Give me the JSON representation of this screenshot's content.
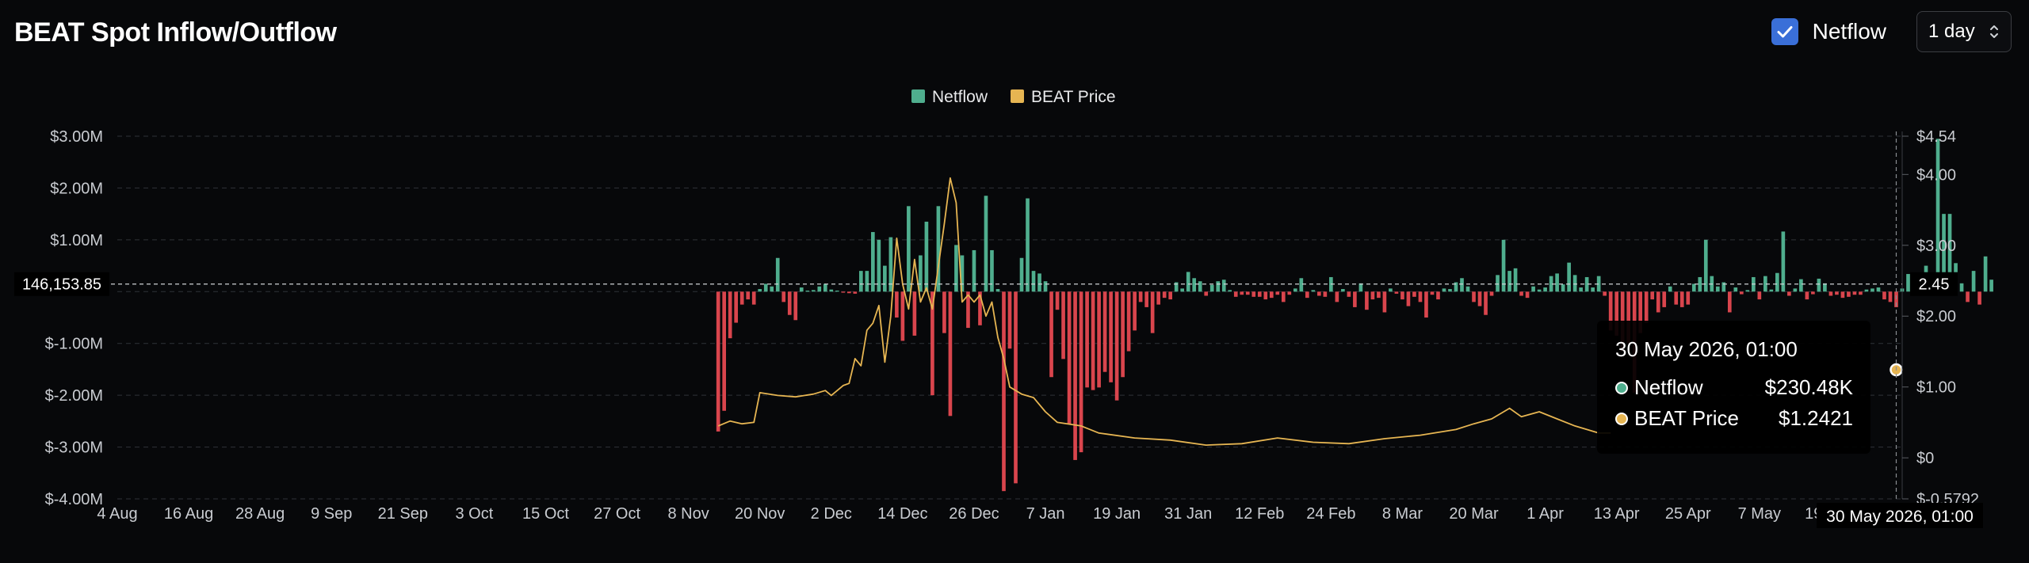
{
  "header": {
    "title": "BEAT Spot Inflow/Outflow",
    "netflow_toggle_label": "Netflow",
    "netflow_checked": true,
    "interval": "1 day"
  },
  "colors": {
    "background": "#07080a",
    "netflow_positive": "#4fae8e",
    "netflow_negative": "#d9454d",
    "price": "#e6b552",
    "checkbox": "#3a6fd8",
    "grid": "#2f3238",
    "text": "#c9ccd1"
  },
  "chart_data": {
    "type": "bar",
    "title": "",
    "legend": [
      {
        "name": "Netflow",
        "color": "#4fae8e"
      },
      {
        "name": "BEAT Price",
        "color": "#e6b552"
      }
    ],
    "legend_position": "top-center",
    "grid": true,
    "y_left": {
      "min": -4000000,
      "max": 3000000,
      "ticks": [
        {
          "value": 3000000,
          "label": "$3.00M"
        },
        {
          "value": 2000000,
          "label": "$2.00M"
        },
        {
          "value": 1000000,
          "label": "$1.00M"
        },
        {
          "value": -1000000,
          "label": "$-1.00M"
        },
        {
          "value": -2000000,
          "label": "$-2.00M"
        },
        {
          "value": -3000000,
          "label": "$-3.00M"
        },
        {
          "value": -4000000,
          "label": "$-4.00M"
        }
      ]
    },
    "y_right": {
      "min": -0.5792,
      "max": 4.54,
      "ticks": [
        {
          "value": 4.54,
          "label": "$4.54"
        },
        {
          "value": 4.0,
          "label": "$4.00"
        },
        {
          "value": 3.0,
          "label": "$3.00"
        },
        {
          "value": 2.0,
          "label": "$2.00"
        },
        {
          "value": 1.0,
          "label": "$1.00"
        },
        {
          "value": 0,
          "label": "$0"
        },
        {
          "value": -0.5792,
          "label": "$-0.5792"
        }
      ]
    },
    "x_range": [
      "2025-08-04",
      "2026-05-31"
    ],
    "x_ticks": [
      {
        "date": "2025-08-04",
        "label": "4 Aug"
      },
      {
        "date": "2025-08-16",
        "label": "16 Aug"
      },
      {
        "date": "2025-08-28",
        "label": "28 Aug"
      },
      {
        "date": "2025-09-09",
        "label": "9 Sep"
      },
      {
        "date": "2025-09-21",
        "label": "21 Sep"
      },
      {
        "date": "2025-10-03",
        "label": "3 Oct"
      },
      {
        "date": "2025-10-15",
        "label": "15 Oct"
      },
      {
        "date": "2025-10-27",
        "label": "27 Oct"
      },
      {
        "date": "2025-11-08",
        "label": "8 Nov"
      },
      {
        "date": "2025-11-20",
        "label": "20 Nov"
      },
      {
        "date": "2025-12-02",
        "label": "2 Dec"
      },
      {
        "date": "2025-12-14",
        "label": "14 Dec"
      },
      {
        "date": "2025-12-26",
        "label": "26 Dec"
      },
      {
        "date": "2026-01-07",
        "label": "7 Jan"
      },
      {
        "date": "2026-01-19",
        "label": "19 Jan"
      },
      {
        "date": "2026-01-31",
        "label": "31 Jan"
      },
      {
        "date": "2026-02-12",
        "label": "12 Feb"
      },
      {
        "date": "2026-02-24",
        "label": "24 Feb"
      },
      {
        "date": "2026-03-08",
        "label": "8 Mar"
      },
      {
        "date": "2026-03-20",
        "label": "20 Mar"
      },
      {
        "date": "2026-04-01",
        "label": "1 Apr"
      },
      {
        "date": "2026-04-13",
        "label": "13 Apr"
      },
      {
        "date": "2026-04-25",
        "label": "25 Apr"
      },
      {
        "date": "2026-05-07",
        "label": "7 May"
      },
      {
        "date": "2026-05-19",
        "label": "19 May"
      }
    ],
    "crosshair": {
      "left_value_label": "146,153.85",
      "left_value": 146153.85,
      "right_value_label": "2.45",
      "right_value": 2.45,
      "x_label": "30 May 2026, 01:00",
      "x_date": "2026-05-30"
    },
    "tooltip": {
      "title": "30 May 2026, 01:00",
      "rows": [
        {
          "name": "Netflow",
          "value": "$230.48K",
          "color": "#4fae8e"
        },
        {
          "name": "BEAT Price",
          "value": "$1.2421",
          "color": "#e6b552"
        }
      ]
    },
    "netflow": {
      "start": "2025-11-13",
      "unit": "USD per day",
      "values": [
        -2700000,
        -2300000,
        -900000,
        -600000,
        -250000,
        -150000,
        -250000,
        50000,
        150000,
        100000,
        650000,
        -200000,
        -450000,
        -550000,
        80000,
        20000,
        30000,
        100000,
        150000,
        40000,
        20000,
        -20000,
        -30000,
        -40000,
        400000,
        400000,
        1150000,
        1000000,
        500000,
        1050000,
        -500000,
        -950000,
        1650000,
        -850000,
        700000,
        1350000,
        -2000000,
        1650000,
        -800000,
        -2400000,
        900000,
        700000,
        -700000,
        800000,
        -650000,
        1850000,
        800000,
        50000,
        -3850000,
        -1100000,
        -3700000,
        650000,
        1800000,
        400000,
        350000,
        200000,
        -1650000,
        -350000,
        -1300000,
        -2550000,
        -3250000,
        -3100000,
        -1850000,
        -1900000,
        -1850000,
        -1550000,
        -1750000,
        -2100000,
        -1650000,
        -1150000,
        -750000,
        -200000,
        -300000,
        -800000,
        -250000,
        -120000,
        -150000,
        180000,
        60000,
        380000,
        260000,
        200000,
        -80000,
        130000,
        200000,
        230000,
        30000,
        -100000,
        -60000,
        -60000,
        -100000,
        -100000,
        -150000,
        -120000,
        -60000,
        -200000,
        -60000,
        60000,
        260000,
        -120000,
        30000,
        -80000,
        -100000,
        280000,
        -200000,
        50000,
        -100000,
        -300000,
        160000,
        -350000,
        -150000,
        -120000,
        -400000,
        60000,
        -40000,
        -150000,
        -280000,
        -100000,
        -200000,
        -500000,
        -60000,
        -150000,
        60000,
        50000,
        180000,
        260000,
        100000,
        -200000,
        -280000,
        -450000,
        -80000,
        320000,
        1000000,
        400000,
        450000,
        -80000,
        -120000,
        100000,
        40000,
        80000,
        300000,
        350000,
        140000,
        560000,
        320000,
        80000,
        280000,
        80000,
        300000,
        -80000,
        -750000,
        -850000,
        -1150000,
        -1000000,
        -1950000,
        -800000,
        -600000,
        -150000,
        -400000,
        -300000,
        100000,
        -250000,
        -300000,
        -250000,
        150000,
        280000,
        1000000,
        300000,
        100000,
        180000,
        -400000,
        80000,
        -50000,
        30000,
        280000,
        -150000,
        300000,
        40000,
        360000,
        1160000,
        -80000,
        60000,
        240000,
        -150000,
        -50000,
        250000,
        160000,
        -80000,
        -60000,
        -120000,
        -100000,
        -60000,
        -60000,
        40000,
        60000,
        80000,
        -150000,
        -200000,
        -300000,
        60000,
        340000,
        200000,
        100000,
        500000,
        260000,
        2950000,
        1500000,
        1500000,
        550000,
        160000,
        -200000,
        400000,
        -250000,
        680000,
        230480
      ]
    },
    "price": {
      "points": [
        [
          "2025-11-13",
          0.45
        ],
        [
          "2025-11-15",
          0.52
        ],
        [
          "2025-11-17",
          0.48
        ],
        [
          "2025-11-19",
          0.5
        ],
        [
          "2025-11-20",
          0.92
        ],
        [
          "2025-11-23",
          0.88
        ],
        [
          "2025-11-26",
          0.86
        ],
        [
          "2025-11-29",
          0.9
        ],
        [
          "2025-12-01",
          0.95
        ],
        [
          "2025-12-02",
          0.88
        ],
        [
          "2025-12-04",
          1.02
        ],
        [
          "2025-12-05",
          1.05
        ],
        [
          "2025-12-06",
          1.4
        ],
        [
          "2025-12-07",
          1.3
        ],
        [
          "2025-12-08",
          1.8
        ],
        [
          "2025-12-09",
          1.9
        ],
        [
          "2025-12-10",
          2.15
        ],
        [
          "2025-12-11",
          1.35
        ],
        [
          "2025-12-12",
          2.0
        ],
        [
          "2025-12-13",
          3.1
        ],
        [
          "2025-12-14",
          2.45
        ],
        [
          "2025-12-15",
          2.1
        ],
        [
          "2025-12-16",
          2.8
        ],
        [
          "2025-12-17",
          2.2
        ],
        [
          "2025-12-18",
          2.4
        ],
        [
          "2025-12-19",
          2.1
        ],
        [
          "2025-12-20",
          2.7
        ],
        [
          "2025-12-21",
          3.3
        ],
        [
          "2025-12-22",
          3.95
        ],
        [
          "2025-12-23",
          3.6
        ],
        [
          "2025-12-24",
          2.2
        ],
        [
          "2025-12-25",
          2.3
        ],
        [
          "2025-12-26",
          2.2
        ],
        [
          "2025-12-27",
          2.3
        ],
        [
          "2025-12-28",
          2.0
        ],
        [
          "2025-12-29",
          2.2
        ],
        [
          "2025-12-30",
          1.7
        ],
        [
          "2025-12-31",
          1.4
        ],
        [
          "2026-01-01",
          1.0
        ],
        [
          "2026-01-03",
          0.9
        ],
        [
          "2026-01-05",
          0.85
        ],
        [
          "2026-01-07",
          0.65
        ],
        [
          "2026-01-09",
          0.5
        ],
        [
          "2026-01-13",
          0.45
        ],
        [
          "2026-01-16",
          0.35
        ],
        [
          "2026-01-22",
          0.28
        ],
        [
          "2026-01-28",
          0.25
        ],
        [
          "2026-02-03",
          0.18
        ],
        [
          "2026-02-09",
          0.2
        ],
        [
          "2026-02-15",
          0.28
        ],
        [
          "2026-02-21",
          0.22
        ],
        [
          "2026-02-27",
          0.2
        ],
        [
          "2026-03-05",
          0.27
        ],
        [
          "2026-03-11",
          0.32
        ],
        [
          "2026-03-17",
          0.4
        ],
        [
          "2026-03-20",
          0.48
        ],
        [
          "2026-03-23",
          0.55
        ],
        [
          "2026-03-26",
          0.7
        ],
        [
          "2026-03-28",
          0.58
        ],
        [
          "2026-03-31",
          0.65
        ],
        [
          "2026-04-03",
          0.55
        ],
        [
          "2026-04-06",
          0.45
        ],
        [
          "2026-04-10",
          0.35
        ],
        [
          "2026-04-12",
          0.35
        ]
      ],
      "end_point": [
        "2026-05-30",
        1.2421
      ]
    }
  }
}
